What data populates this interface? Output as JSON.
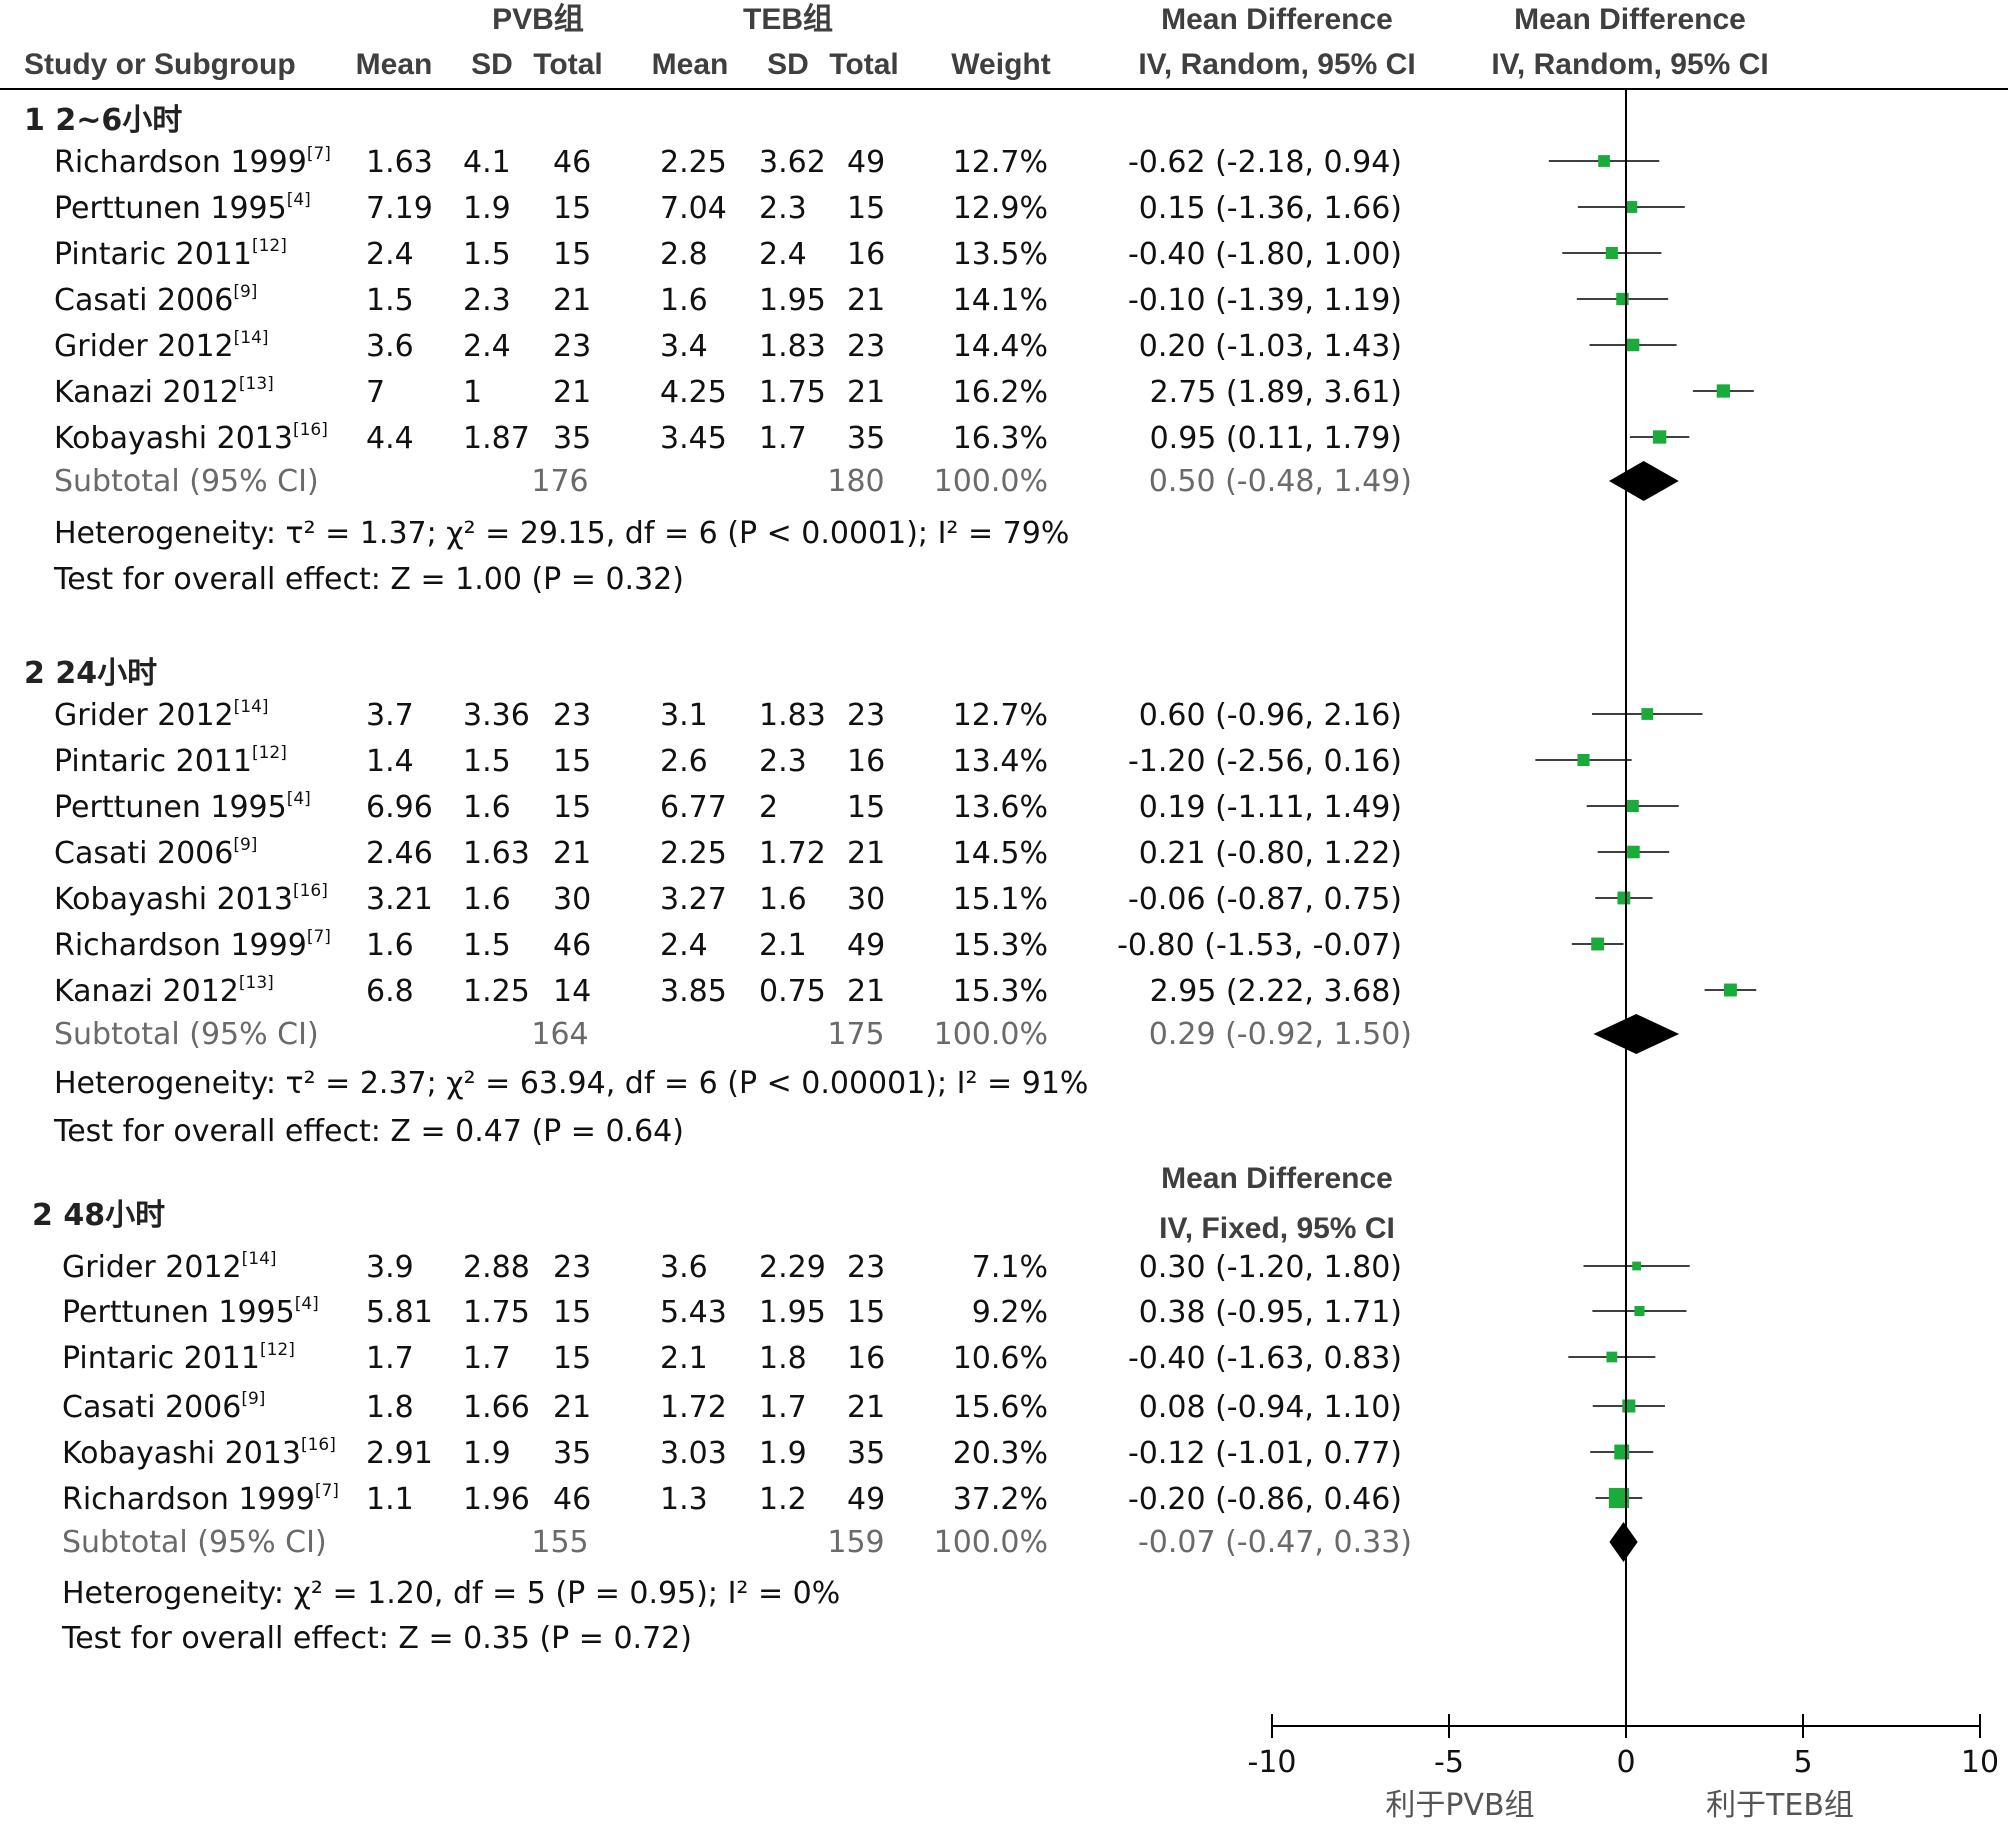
{
  "header": {
    "pvb_label": "PVB组",
    "teb_label": "TEB组",
    "study_col": "Study or Subgroup",
    "mean_col": "Mean",
    "sd_col": "SD",
    "total_col": "Total",
    "weight_col": "Weight",
    "md_title": "Mean Difference",
    "md_method": "IV, Random, 95% CI",
    "plot_title": "Mean Difference",
    "plot_method": "IV, Random, 95% CI"
  },
  "colors": {
    "marker": "#1aab3a",
    "diamond": "#000000",
    "axis": "#000000"
  },
  "chart_data": {
    "type": "forest",
    "xlim": [
      -10,
      10
    ],
    "xticks": [
      "-10",
      "-5",
      "0",
      "5",
      "10"
    ],
    "favours_left": "利于PVB组",
    "favours_right": "利于TEB组",
    "subgroups": [
      {
        "title": "1  2~6小时",
        "method_title": "",
        "method_sub": "",
        "studies": [
          {
            "name": "Richardson 1999",
            "ref": "[7]",
            "m1": "1.63",
            "sd1": "4.1",
            "n1": "46",
            "m2": "2.25",
            "sd2": "3.62",
            "n2": "49",
            "weight": "12.7%",
            "ci_text": "-0.62 (-2.18, 0.94)",
            "md": -0.62,
            "lo": -2.18,
            "hi": 0.94,
            "w": 12.7
          },
          {
            "name": "Perttunen 1995",
            "ref": "[4]",
            "m1": "7.19",
            "sd1": "1.9",
            "n1": "15",
            "m2": "7.04",
            "sd2": "2.3",
            "n2": "15",
            "weight": "12.9%",
            "ci_text": "0.15 (-1.36, 1.66)",
            "md": 0.15,
            "lo": -1.36,
            "hi": 1.66,
            "w": 12.9
          },
          {
            "name": "Pintaric 2011",
            "ref": "[12]",
            "m1": "2.4",
            "sd1": "1.5",
            "n1": "15",
            "m2": "2.8",
            "sd2": "2.4",
            "n2": "16",
            "weight": "13.5%",
            "ci_text": "-0.40 (-1.80, 1.00)",
            "md": -0.4,
            "lo": -1.8,
            "hi": 1.0,
            "w": 13.5
          },
          {
            "name": "Casati 2006",
            "ref": "[9]",
            "m1": "1.5",
            "sd1": "2.3",
            "n1": "21",
            "m2": "1.6",
            "sd2": "1.95",
            "n2": "21",
            "weight": "14.1%",
            "ci_text": "-0.10 (-1.39, 1.19)",
            "md": -0.1,
            "lo": -1.39,
            "hi": 1.19,
            "w": 14.1
          },
          {
            "name": "Grider 2012",
            "ref": "[14]",
            "m1": "3.6",
            "sd1": "2.4",
            "n1": "23",
            "m2": "3.4",
            "sd2": "1.83",
            "n2": "23",
            "weight": "14.4%",
            "ci_text": "0.20 (-1.03, 1.43)",
            "md": 0.2,
            "lo": -1.03,
            "hi": 1.43,
            "w": 14.4
          },
          {
            "name": "Kanazi 2012",
            "ref": "[13]",
            "m1": "7",
            "sd1": "1",
            "n1": "21",
            "m2": "4.25",
            "sd2": "1.75",
            "n2": "21",
            "weight": "16.2%",
            "ci_text": "2.75 (1.89, 3.61)",
            "md": 2.75,
            "lo": 1.89,
            "hi": 3.61,
            "w": 16.2
          },
          {
            "name": "Kobayashi 2013",
            "ref": "[16]",
            "m1": "4.4",
            "sd1": "1.87",
            "n1": "35",
            "m2": "3.45",
            "sd2": "1.7",
            "n2": "35",
            "weight": "16.3%",
            "ci_text": "0.95 (0.11, 1.79)",
            "md": 0.95,
            "lo": 0.11,
            "hi": 1.79,
            "w": 16.3
          }
        ],
        "subtotal": {
          "label": "Subtotal (95% CI)",
          "n1": "176",
          "n2": "180",
          "weight": "100.0%",
          "ci_text": "0.50 (-0.48, 1.49)",
          "md": 0.5,
          "lo": -0.48,
          "hi": 1.49
        },
        "heterogeneity": "Heterogeneity: τ² = 1.37; χ² = 29.15, df = 6 (P < 0.0001); I² = 79%",
        "overall": "Test for overall effect: Z = 1.00 (P = 0.32)"
      },
      {
        "title": "2  24小时",
        "method_title": "",
        "method_sub": "",
        "studies": [
          {
            "name": "Grider 2012",
            "ref": "[14]",
            "m1": "3.7",
            "sd1": "3.36",
            "n1": "23",
            "m2": "3.1",
            "sd2": "1.83",
            "n2": "23",
            "weight": "12.7%",
            "ci_text": "0.60 (-0.96, 2.16)",
            "md": 0.6,
            "lo": -0.96,
            "hi": 2.16,
            "w": 12.7
          },
          {
            "name": "Pintaric 2011",
            "ref": "[12]",
            "m1": "1.4",
            "sd1": "1.5",
            "n1": "15",
            "m2": "2.6",
            "sd2": "2.3",
            "n2": "16",
            "weight": "13.4%",
            "ci_text": "-1.20 (-2.56, 0.16)",
            "md": -1.2,
            "lo": -2.56,
            "hi": 0.16,
            "w": 13.4
          },
          {
            "name": "Perttunen 1995",
            "ref": "[4]",
            "m1": "6.96",
            "sd1": "1.6",
            "n1": "15",
            "m2": "6.77",
            "sd2": "2",
            "n2": "15",
            "weight": "13.6%",
            "ci_text": "0.19 (-1.11, 1.49)",
            "md": 0.19,
            "lo": -1.11,
            "hi": 1.49,
            "w": 13.6
          },
          {
            "name": "Casati 2006",
            "ref": "[9]",
            "m1": "2.46",
            "sd1": "1.63",
            "n1": "21",
            "m2": "2.25",
            "sd2": "1.72",
            "n2": "21",
            "weight": "14.5%",
            "ci_text": "0.21 (-0.80, 1.22)",
            "md": 0.21,
            "lo": -0.8,
            "hi": 1.22,
            "w": 14.5
          },
          {
            "name": "Kobayashi 2013",
            "ref": "[16]",
            "m1": "3.21",
            "sd1": "1.6",
            "n1": "30",
            "m2": "3.27",
            "sd2": "1.6",
            "n2": "30",
            "weight": "15.1%",
            "ci_text": "-0.06 (-0.87, 0.75)",
            "md": -0.06,
            "lo": -0.87,
            "hi": 0.75,
            "w": 15.1
          },
          {
            "name": "Richardson 1999",
            "ref": "[7]",
            "m1": "1.6",
            "sd1": "1.5",
            "n1": "46",
            "m2": "2.4",
            "sd2": "2.1",
            "n2": "49",
            "weight": "15.3%",
            "ci_text": "-0.80 (-1.53, -0.07)",
            "md": -0.8,
            "lo": -1.53,
            "hi": -0.07,
            "w": 15.3
          },
          {
            "name": "Kanazi 2012",
            "ref": "[13]",
            "m1": "6.8",
            "sd1": "1.25",
            "n1": "14",
            "m2": "3.85",
            "sd2": "0.75",
            "n2": "21",
            "weight": "15.3%",
            "ci_text": "2.95 (2.22, 3.68)",
            "md": 2.95,
            "lo": 2.22,
            "hi": 3.68,
            "w": 15.3
          }
        ],
        "subtotal": {
          "label": "Subtotal (95% CI)",
          "n1": "164",
          "n2": "175",
          "weight": "100.0%",
          "ci_text": "0.29 (-0.92, 1.50)",
          "md": 0.29,
          "lo": -0.92,
          "hi": 1.5
        },
        "heterogeneity": "Heterogeneity: τ² = 2.37; χ² = 63.94, df = 6 (P < 0.00001); I² = 91%",
        "overall": "Test for overall effect: Z = 0.47 (P = 0.64)"
      },
      {
        "title": "2  48小时",
        "method_title": "Mean Difference",
        "method_sub": "IV, Fixed, 95% CI",
        "studies": [
          {
            "name": "Grider 2012",
            "ref": "[14]",
            "m1": "3.9",
            "sd1": "2.88",
            "n1": "23",
            "m2": "3.6",
            "sd2": "2.29",
            "n2": "23",
            "weight": "7.1%",
            "ci_text": "0.30 (-1.20, 1.80)",
            "md": 0.3,
            "lo": -1.2,
            "hi": 1.8,
            "w": 7.1
          },
          {
            "name": "Perttunen 1995",
            "ref": "[4]",
            "m1": "5.81",
            "sd1": "1.75",
            "n1": "15",
            "m2": "5.43",
            "sd2": "1.95",
            "n2": "15",
            "weight": "9.2%",
            "ci_text": "0.38 (-0.95, 1.71)",
            "md": 0.38,
            "lo": -0.95,
            "hi": 1.71,
            "w": 9.2
          },
          {
            "name": "Pintaric 2011",
            "ref": "[12]",
            "m1": "1.7",
            "sd1": "1.7",
            "n1": "15",
            "m2": "2.1",
            "sd2": "1.8",
            "n2": "16",
            "weight": "10.6%",
            "ci_text": "-0.40 (-1.63, 0.83)",
            "md": -0.4,
            "lo": -1.63,
            "hi": 0.83,
            "w": 10.6
          },
          {
            "name": "Casati 2006",
            "ref": "[9]",
            "m1": "1.8",
            "sd1": "1.66",
            "n1": "21",
            "m2": "1.72",
            "sd2": "1.7",
            "n2": "21",
            "weight": "15.6%",
            "ci_text": "0.08 (-0.94, 1.10)",
            "md": 0.08,
            "lo": -0.94,
            "hi": 1.1,
            "w": 15.6
          },
          {
            "name": "Kobayashi 2013",
            "ref": "[16]",
            "m1": "2.91",
            "sd1": "1.9",
            "n1": "35",
            "m2": "3.03",
            "sd2": "1.9",
            "n2": "35",
            "weight": "20.3%",
            "ci_text": "-0.12 (-1.01, 0.77)",
            "md": -0.12,
            "lo": -1.01,
            "hi": 0.77,
            "w": 20.3
          },
          {
            "name": "Richardson 1999",
            "ref": "[7]",
            "m1": "1.1",
            "sd1": "1.96",
            "n1": "46",
            "m2": "1.3",
            "sd2": "1.2",
            "n2": "49",
            "weight": "37.2%",
            "ci_text": "-0.20 (-0.86, 0.46)",
            "md": -0.2,
            "lo": -0.86,
            "hi": 0.46,
            "w": 37.2
          }
        ],
        "subtotal": {
          "label": "Subtotal (95% CI)",
          "n1": "155",
          "n2": "159",
          "weight": "100.0%",
          "ci_text": "-0.07 (-0.47, 0.33)",
          "md": -0.07,
          "lo": -0.47,
          "hi": 0.33
        },
        "heterogeneity": "Heterogeneity: χ² = 1.20, df = 5 (P = 0.95); I² = 0%",
        "overall": "Test for overall effect: Z = 0.35 (P = 0.72)"
      }
    ]
  }
}
